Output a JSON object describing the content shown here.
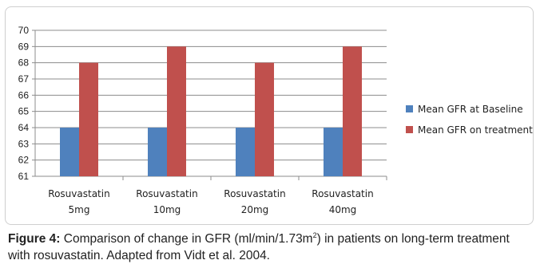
{
  "chart_data": {
    "type": "bar",
    "categories": [
      [
        "Rosuvastatin",
        "5mg"
      ],
      [
        "Rosuvastatin",
        "10mg"
      ],
      [
        "Rosuvastatin",
        "20mg"
      ],
      [
        "Rosuvastatin",
        "40mg"
      ]
    ],
    "series": [
      {
        "name": "Mean GFR at Baseline",
        "values": [
          64,
          64,
          64,
          64
        ],
        "color": "#4f81bd"
      },
      {
        "name": "Mean GFR on treatment",
        "values": [
          68,
          69,
          68,
          69
        ],
        "color": "#c0504d"
      }
    ],
    "ylim": [
      61,
      70
    ],
    "yticks": [
      61,
      62,
      63,
      64,
      65,
      66,
      67,
      68,
      69,
      70
    ],
    "grid": true,
    "legend": "right"
  },
  "caption": {
    "label": "Figure 4:",
    "text_before_sup": " Comparison of change in GFR (ml/min/1.73m",
    "sup": "2",
    "text_after_sup": ") in patients on long-term treatment with rosuvastatin. Adapted from Vidt et al. 2004."
  }
}
